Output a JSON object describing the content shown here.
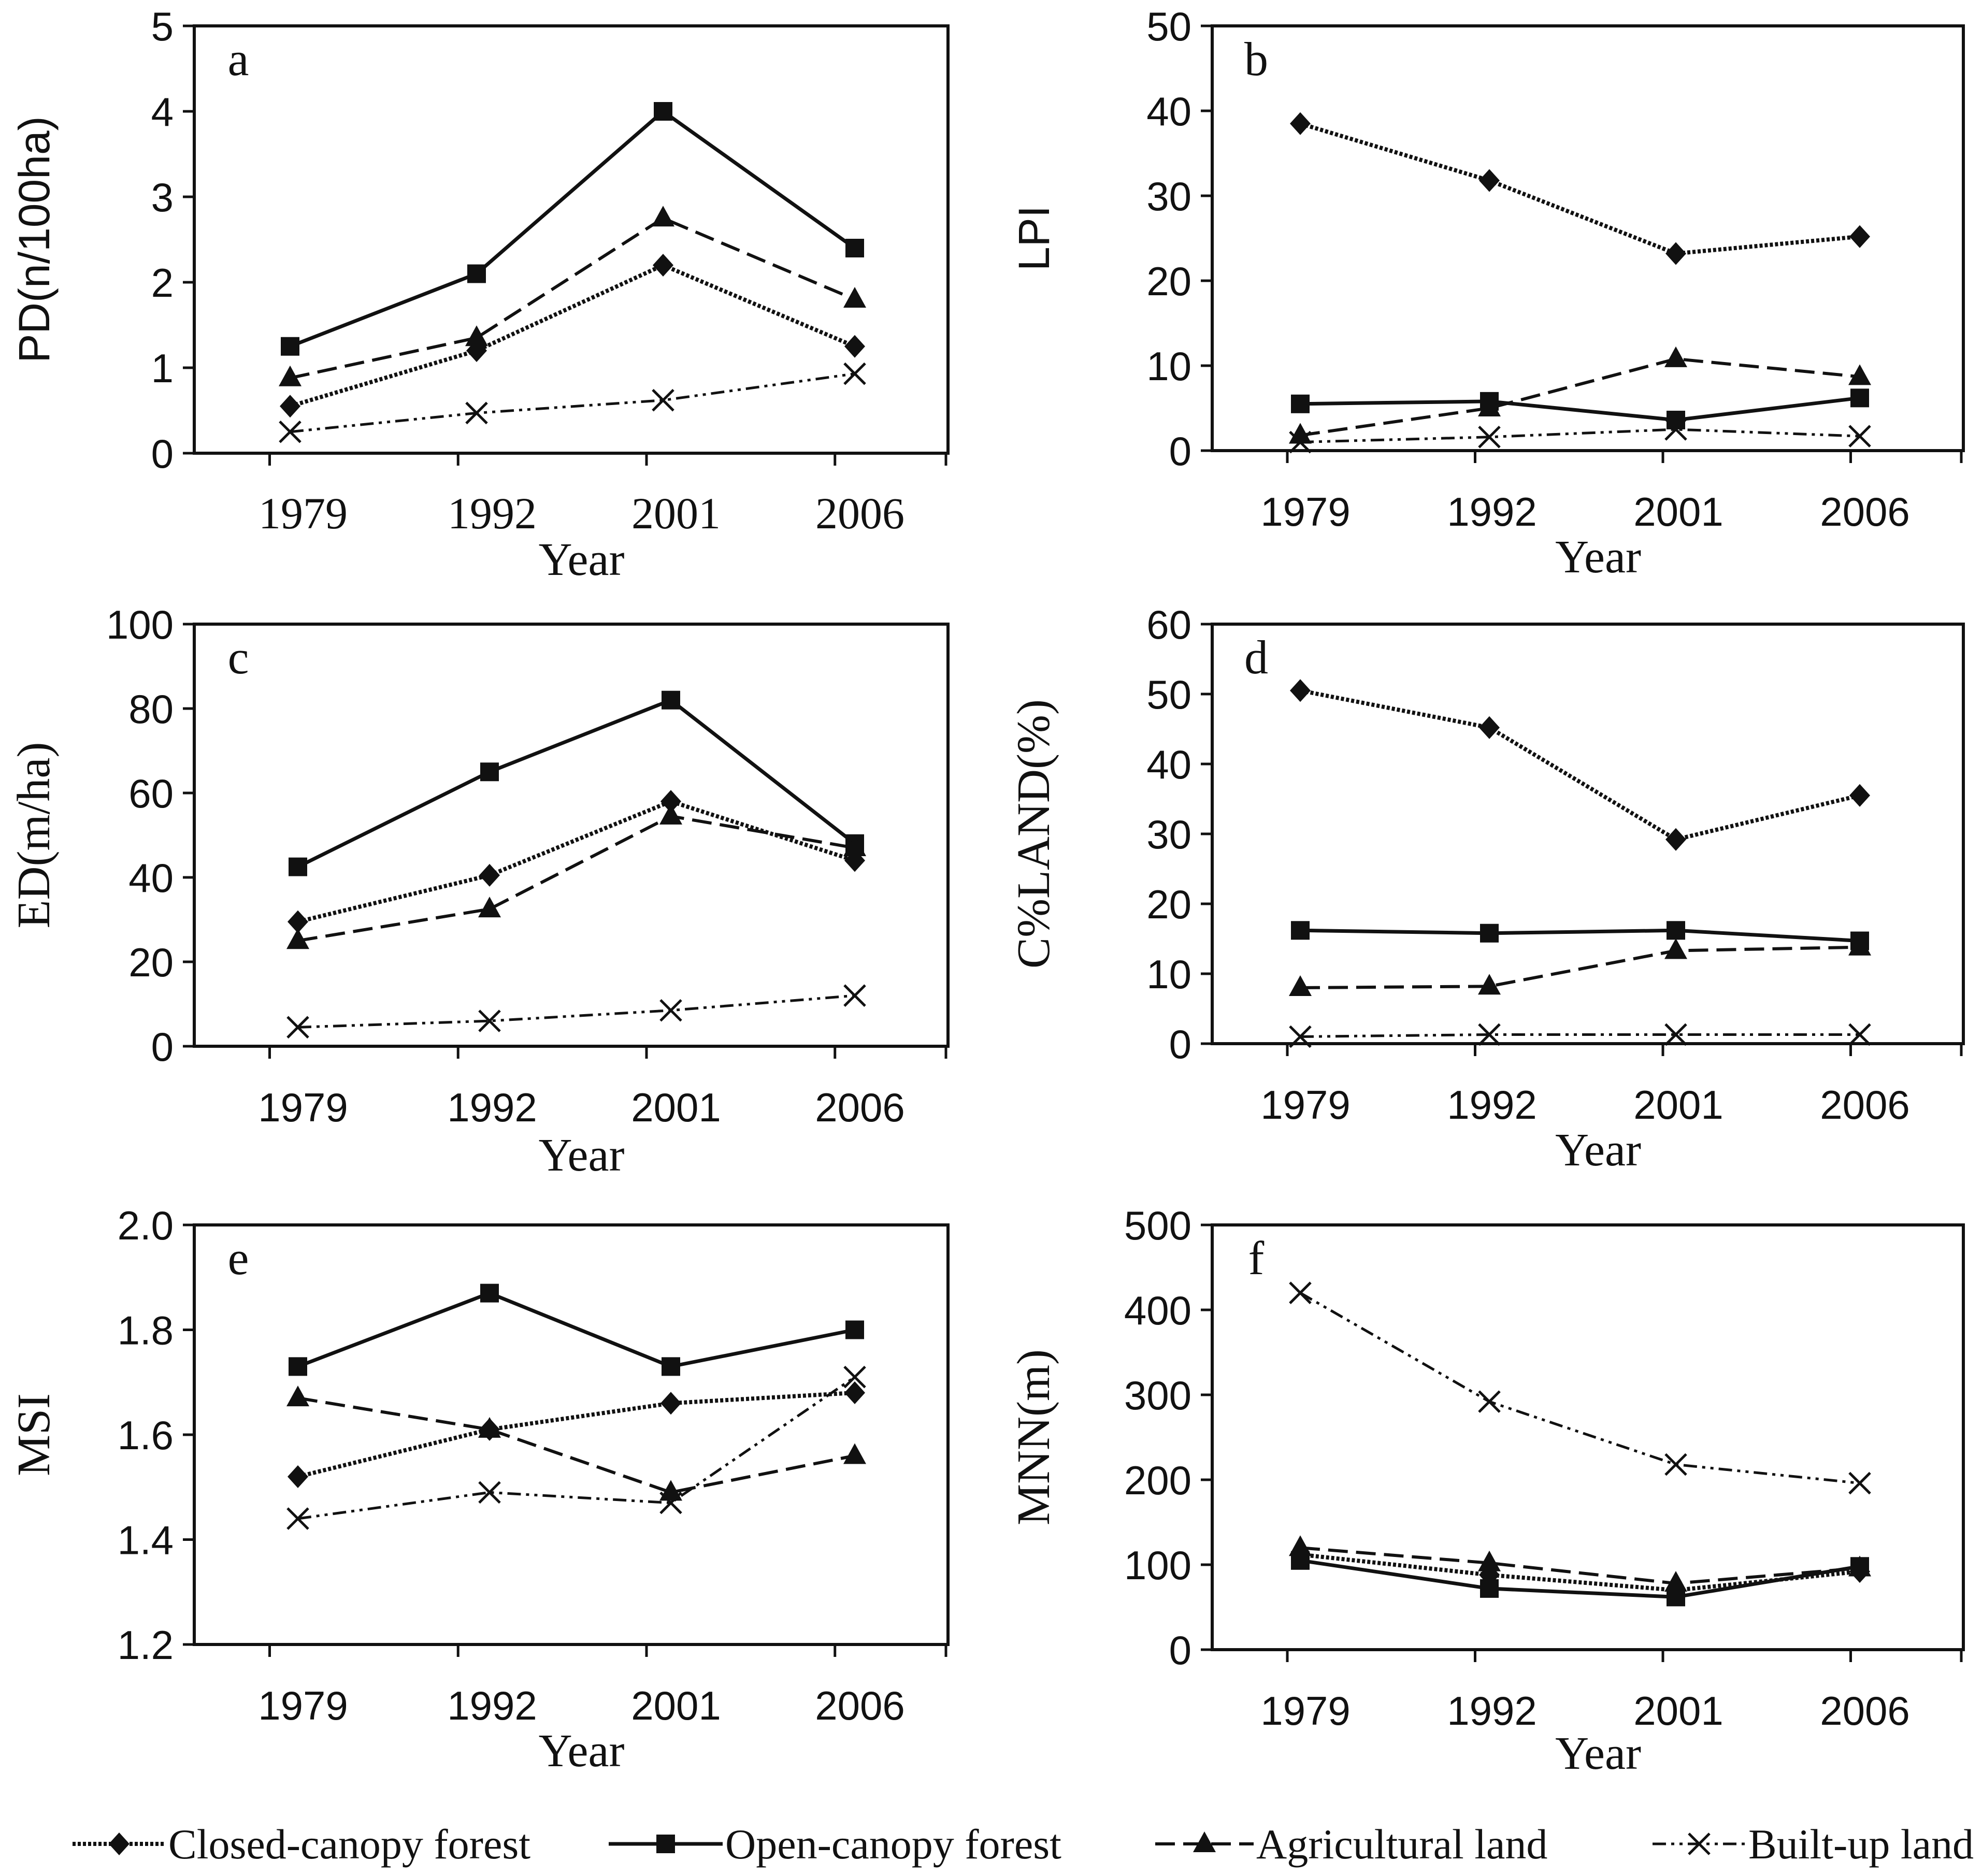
{
  "chart_data": [
    {
      "type": "line",
      "panel": "a",
      "ylabel": "PD(n/100ha)",
      "xlabel": "Year",
      "categories": [
        "1979",
        "1992",
        "2001",
        "2006"
      ],
      "ylim": [
        0,
        5
      ],
      "yticks": [
        "0",
        "1",
        "2",
        "3",
        "4",
        "5"
      ],
      "series": [
        {
          "name": "Closed-canopy forest",
          "values": [
            0.55,
            1.2,
            2.2,
            1.25
          ]
        },
        {
          "name": "Open-canopy forest",
          "values": [
            1.25,
            2.1,
            4.0,
            2.4
          ]
        },
        {
          "name": "Agricultural land",
          "values": [
            0.88,
            1.35,
            2.75,
            1.8
          ]
        },
        {
          "name": "Built-up land",
          "values": [
            0.25,
            0.47,
            0.62,
            0.93
          ]
        }
      ]
    },
    {
      "type": "line",
      "panel": "b",
      "ylabel": "LPI",
      "xlabel": "Year",
      "categories": [
        "1979",
        "1992",
        "2001",
        "2006"
      ],
      "ylim": [
        0,
        50
      ],
      "yticks": [
        "0",
        "10",
        "20",
        "30",
        "40",
        "50"
      ],
      "series": [
        {
          "name": "Closed-canopy forest",
          "values": [
            38.5,
            31.8,
            23.2,
            25.2
          ]
        },
        {
          "name": "Open-canopy forest",
          "values": [
            5.5,
            5.8,
            3.6,
            6.2
          ]
        },
        {
          "name": "Agricultural land",
          "values": [
            1.8,
            5.0,
            10.8,
            8.7
          ]
        },
        {
          "name": "Built-up land",
          "values": [
            1.0,
            1.6,
            2.5,
            1.7
          ]
        }
      ]
    },
    {
      "type": "line",
      "panel": "c",
      "ylabel": "ED(m/ha)",
      "xlabel": "Year",
      "categories": [
        "1979",
        "1992",
        "2001",
        "2006"
      ],
      "ylim": [
        0,
        100
      ],
      "yticks": [
        "0",
        "20",
        "40",
        "60",
        "80",
        "100"
      ],
      "series": [
        {
          "name": "Closed-canopy forest",
          "values": [
            29.5,
            40.5,
            58,
            44
          ]
        },
        {
          "name": "Open-canopy forest",
          "values": [
            42.5,
            65,
            82,
            48
          ]
        },
        {
          "name": "Agricultural land",
          "values": [
            25,
            32.5,
            54.5,
            47
          ]
        },
        {
          "name": "Built-up land",
          "values": [
            4.5,
            6,
            8.5,
            12
          ]
        }
      ]
    },
    {
      "type": "line",
      "panel": "d",
      "ylabel": "C%LAND(%)",
      "xlabel": "Year",
      "categories": [
        "1979",
        "1992",
        "2001",
        "2006"
      ],
      "ylim": [
        0,
        60
      ],
      "yticks": [
        "0",
        "10",
        "20",
        "30",
        "40",
        "50",
        "60"
      ],
      "series": [
        {
          "name": "Closed-canopy forest",
          "values": [
            50.5,
            45.2,
            29.2,
            35.5
          ]
        },
        {
          "name": "Open-canopy forest",
          "values": [
            16.2,
            15.8,
            16.2,
            14.7
          ]
        },
        {
          "name": "Agricultural land",
          "values": [
            8.0,
            8.2,
            13.3,
            13.8
          ]
        },
        {
          "name": "Built-up land",
          "values": [
            1.0,
            1.3,
            1.3,
            1.3
          ]
        }
      ]
    },
    {
      "type": "line",
      "panel": "e",
      "ylabel": "MSI",
      "xlabel": "Year",
      "categories": [
        "1979",
        "1992",
        "2001",
        "2006"
      ],
      "ylim": [
        1.2,
        2.0
      ],
      "yticks": [
        "1.2",
        "1.4",
        "1.6",
        "1.8",
        "2.0"
      ],
      "series": [
        {
          "name": "Closed-canopy forest",
          "values": [
            1.52,
            1.61,
            1.66,
            1.68
          ]
        },
        {
          "name": "Open-canopy forest",
          "values": [
            1.73,
            1.87,
            1.73,
            1.8
          ]
        },
        {
          "name": "Agricultural land",
          "values": [
            1.67,
            1.61,
            1.49,
            1.56
          ]
        },
        {
          "name": "Built-up land",
          "values": [
            1.44,
            1.49,
            1.47,
            1.71
          ]
        }
      ]
    },
    {
      "type": "line",
      "panel": "f",
      "ylabel": "MNN(m)",
      "xlabel": "Year",
      "categories": [
        "1979",
        "1992",
        "2001",
        "2006"
      ],
      "ylim": [
        0,
        500
      ],
      "yticks": [
        "0",
        "100",
        "200",
        "300",
        "400",
        "500"
      ],
      "series": [
        {
          "name": "Closed-canopy forest",
          "values": [
            112,
            88,
            70,
            92
          ]
        },
        {
          "name": "Open-canopy forest",
          "values": [
            105,
            72,
            62,
            98
          ]
        },
        {
          "name": "Agricultural land",
          "values": [
            120,
            102,
            78,
            96
          ]
        },
        {
          "name": "Built-up land",
          "values": [
            420,
            292,
            218,
            196
          ]
        }
      ]
    }
  ],
  "legend": [
    "Closed-canopy forest",
    "Open-canopy forest",
    "Agricultural land",
    "Built-up land"
  ]
}
